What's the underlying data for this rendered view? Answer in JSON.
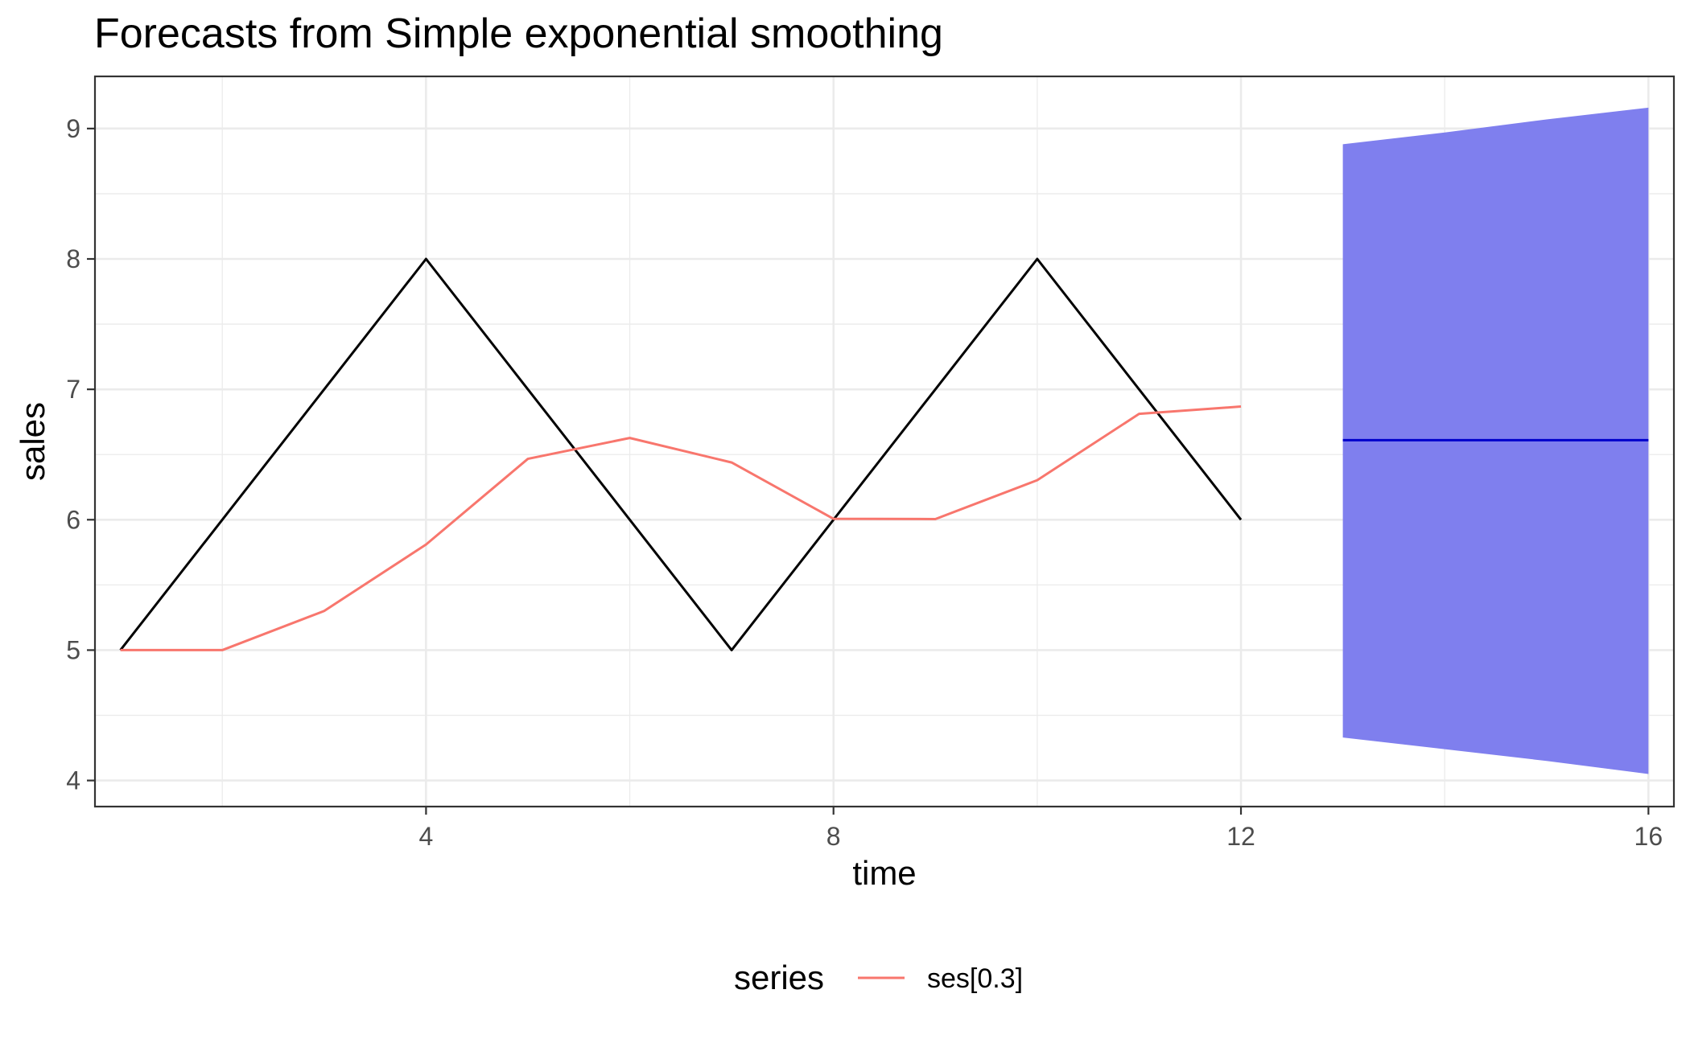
{
  "chart_data": {
    "type": "line",
    "title": "Forecasts from Simple exponential smoothing",
    "xlabel": "time",
    "ylabel": "sales",
    "xlim": [
      0.75,
      16.25
    ],
    "ylim": [
      3.8,
      9.4
    ],
    "x_ticks": [
      4,
      8,
      12,
      16
    ],
    "y_ticks": [
      4,
      5,
      6,
      7,
      8,
      9
    ],
    "x_tick_labels": [
      "4",
      "8",
      "12",
      "16"
    ],
    "y_tick_labels": [
      "4",
      "5",
      "6",
      "7",
      "8",
      "9"
    ],
    "grid": true,
    "legend_position": "bottom",
    "legend_title": "series",
    "observed": {
      "x": [
        1,
        2,
        3,
        4,
        5,
        6,
        7,
        8,
        9,
        10,
        11,
        12
      ],
      "y": [
        5,
        6,
        7,
        8,
        7,
        6,
        5,
        6,
        7,
        8,
        7,
        6
      ],
      "color": "#000000"
    },
    "series": [
      {
        "name": "ses[0.3]",
        "x": [
          1,
          2,
          3,
          4,
          5,
          6,
          7,
          8,
          9,
          10,
          11,
          12
        ],
        "y": [
          5.0,
          5.0,
          5.3,
          5.81,
          6.467,
          6.627,
          6.439,
          6.007,
          6.005,
          6.303,
          6.812,
          6.868
        ],
        "color": "#F8766D"
      }
    ],
    "forecast": {
      "x": [
        13,
        14,
        15,
        16
      ],
      "mean": [
        6.61,
        6.61,
        6.61,
        6.61
      ],
      "lower": [
        4.33,
        4.24,
        4.15,
        4.05
      ],
      "upper": [
        8.88,
        8.97,
        9.07,
        9.16
      ],
      "line_color": "#0000CC",
      "band_color": "#7F7FEE"
    }
  }
}
